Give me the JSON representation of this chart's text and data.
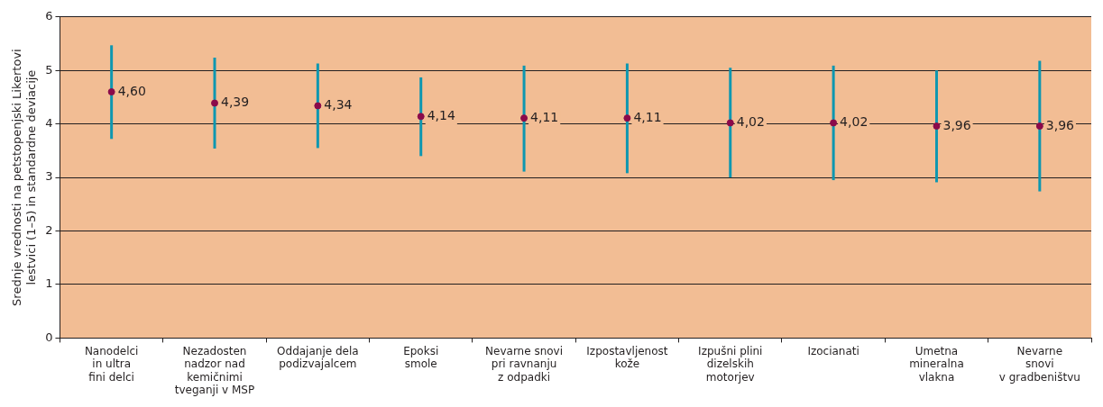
{
  "chart_data": {
    "type": "scatter",
    "ylabel": "Srednje vrednosti na petstopenjski Likertovi\nlestvici (1–5) in standardne deviacije",
    "categories": [
      "Nanodelci\nin ultra\nfini delci",
      "Nezadosten\nnadzor nad\nkemičnimi\ntveganji v MSP",
      "Oddajanje dela\npodizvajalcem",
      "Epoksi\nsmole",
      "Nevarne snovi\npri ravnanju\nz odpadki",
      "Izpostavljenost\nkože",
      "Izpušni plini\ndizelskih\nmotorjev",
      "Izocianati",
      "Umetna\nmineralna\nvlakna",
      "Nevarne\nsnovi\nv gradbeništvu"
    ],
    "series": [
      {
        "color": "#8b0a4a",
        "values": [
          4.6,
          4.39,
          4.34,
          4.14,
          4.11,
          4.11,
          4.02,
          4.02,
          3.96,
          3.96
        ],
        "errors": [
          [
            3.72,
            5.47
          ],
          [
            3.54,
            5.24
          ],
          [
            3.55,
            5.13
          ],
          [
            3.4,
            4.87
          ],
          [
            3.11,
            5.09
          ],
          [
            3.08,
            5.13
          ],
          [
            3.0,
            5.05
          ],
          [
            2.95,
            5.09
          ],
          [
            2.91,
            5.0
          ],
          [
            2.74,
            5.18
          ]
        ],
        "value_labels": [
          "4,60",
          "4,39",
          "4,34",
          "4,14",
          "4,11",
          "4,11",
          "4,02",
          "4,02",
          "3,96",
          "3,96"
        ]
      }
    ],
    "ylim": [
      0,
      6
    ],
    "yticks": [
      0,
      1,
      2,
      3,
      4,
      5,
      6
    ],
    "grid": "y",
    "marker": "circle",
    "legend": false
  }
}
